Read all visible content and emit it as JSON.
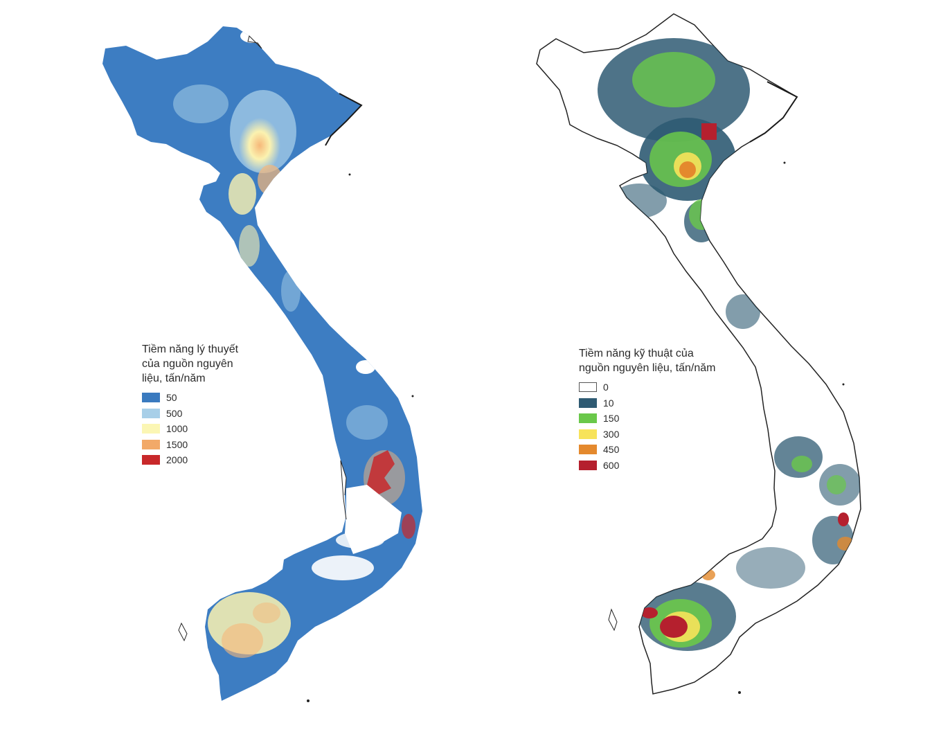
{
  "maps": [
    {
      "legend_title": "Tiềm năng lý thuyết\ncủa nguồn nguyên\nliệu, tấn/năm",
      "legend": [
        {
          "label": "50",
          "color": "#3a7abf"
        },
        {
          "label": "500",
          "color": "#a8cfe8"
        },
        {
          "label": "1000",
          "color": "#fbf6b4"
        },
        {
          "label": "1500",
          "color": "#f2a968"
        },
        {
          "label": "2000",
          "color": "#c8282a"
        }
      ]
    },
    {
      "legend_title": "Tiềm năng kỹ thuật của\nnguồn nguyên liệu, tấn/năm",
      "legend": [
        {
          "label": "0",
          "color": "#ffffff"
        },
        {
          "label": "10",
          "color": "#2f5b73"
        },
        {
          "label": "150",
          "color": "#6ac84a"
        },
        {
          "label": "300",
          "color": "#f7e35a"
        },
        {
          "label": "450",
          "color": "#e4892d"
        },
        {
          "label": "600",
          "color": "#b5202e"
        }
      ]
    }
  ]
}
